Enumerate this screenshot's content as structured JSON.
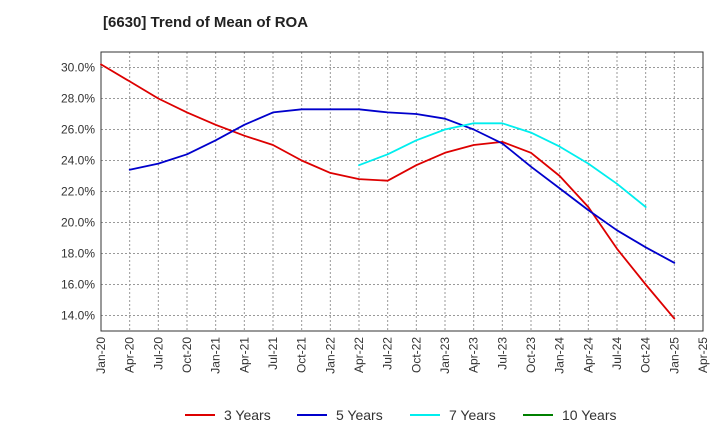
{
  "chart_data": {
    "type": "line",
    "title": "[6630]  Trend of Mean of ROA",
    "xlabel": "",
    "ylabel": "",
    "ylim": [
      13.0,
      31.0
    ],
    "yticks": [
      14.0,
      16.0,
      18.0,
      20.0,
      22.0,
      24.0,
      26.0,
      28.0,
      30.0
    ],
    "ytick_labels": [
      "14.0%",
      "16.0%",
      "18.0%",
      "20.0%",
      "22.0%",
      "24.0%",
      "26.0%",
      "28.0%",
      "30.0%"
    ],
    "x_categories": [
      "Jan-20",
      "Apr-20",
      "Jul-20",
      "Oct-20",
      "Jan-21",
      "Apr-21",
      "Jul-21",
      "Oct-21",
      "Jan-22",
      "Apr-22",
      "Jul-22",
      "Oct-22",
      "Jan-23",
      "Apr-23",
      "Jul-23",
      "Oct-23",
      "Jan-24",
      "Apr-24",
      "Jul-24",
      "Oct-24",
      "Jan-25",
      "Apr-25"
    ],
    "grid": true,
    "legend_position": "bottom",
    "series": [
      {
        "name": "3 Years",
        "color": "#dd0000",
        "start_index": 0,
        "values": [
          30.2,
          29.1,
          28.0,
          27.1,
          26.3,
          25.6,
          25.0,
          24.0,
          23.2,
          22.8,
          22.7,
          23.7,
          24.5,
          25.0,
          25.2,
          24.5,
          23.0,
          21.0,
          18.3,
          16.0,
          13.8
        ]
      },
      {
        "name": "5 Years",
        "color": "#0000cc",
        "start_index": 1,
        "values": [
          23.4,
          23.8,
          24.4,
          25.3,
          26.3,
          27.1,
          27.3,
          27.3,
          27.3,
          27.1,
          27.0,
          26.7,
          26.0,
          25.1,
          23.6,
          22.2,
          20.8,
          19.5,
          18.4,
          17.4
        ]
      },
      {
        "name": "7 Years",
        "color": "#00eeee",
        "start_index": 9,
        "values": [
          23.7,
          24.4,
          25.3,
          26.0,
          26.4,
          26.4,
          25.8,
          24.9,
          23.8,
          22.5,
          21.0
        ]
      },
      {
        "name": "10 Years",
        "color": "#008000",
        "start_index": 0,
        "values": []
      }
    ]
  },
  "colors": {
    "plot_frame": "#333333",
    "grid": "#999999"
  }
}
